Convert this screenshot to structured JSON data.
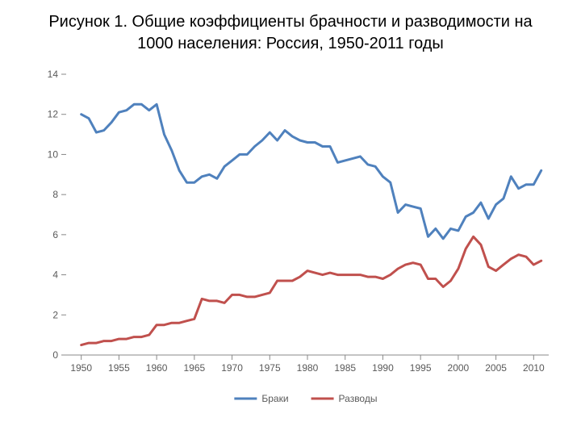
{
  "title_line1": "Рисунок 1. Общие коэффициенты брачности и разводимости на",
  "title_line2": "1000 населения: Россия, 1950-2011 годы",
  "title_fontsize": 20,
  "title_color": "#000000",
  "chart": {
    "type": "line",
    "background_color": "#ffffff",
    "plot_border_color": "#888888",
    "axis_tick_color": "#888888",
    "axis_label_color": "#595959",
    "axis_label_fontsize": 12,
    "grid": false,
    "x_axis": {
      "min": 1948,
      "max": 2012,
      "ticks": [
        1950,
        1955,
        1960,
        1965,
        1970,
        1975,
        1980,
        1985,
        1990,
        1995,
        2000,
        2005,
        2010
      ]
    },
    "y_axis": {
      "min": 0,
      "max": 14,
      "ticks": [
        0,
        2,
        4,
        6,
        8,
        10,
        12,
        14
      ]
    },
    "series": [
      {
        "name": "Браки",
        "color": "#4f81bd",
        "line_width": 3,
        "legend_label": "Браки",
        "x": [
          1950,
          1951,
          1952,
          1953,
          1954,
          1955,
          1956,
          1957,
          1958,
          1959,
          1960,
          1961,
          1962,
          1963,
          1964,
          1965,
          1966,
          1967,
          1968,
          1969,
          1970,
          1971,
          1972,
          1973,
          1974,
          1975,
          1976,
          1977,
          1978,
          1979,
          1980,
          1981,
          1982,
          1983,
          1984,
          1985,
          1986,
          1987,
          1988,
          1989,
          1990,
          1991,
          1992,
          1993,
          1994,
          1995,
          1996,
          1997,
          1998,
          1999,
          2000,
          2001,
          2002,
          2003,
          2004,
          2005,
          2006,
          2007,
          2008,
          2009,
          2010,
          2011
        ],
        "y": [
          12.0,
          11.8,
          11.1,
          11.2,
          11.6,
          12.1,
          12.2,
          12.5,
          12.5,
          12.2,
          12.5,
          11.0,
          10.2,
          9.2,
          8.6,
          8.6,
          8.9,
          9.0,
          8.8,
          9.4,
          9.7,
          10.0,
          10.0,
          10.4,
          10.7,
          11.1,
          10.7,
          11.2,
          10.9,
          10.7,
          10.6,
          10.6,
          10.4,
          10.4,
          9.6,
          9.7,
          9.8,
          9.9,
          9.5,
          9.4,
          8.9,
          8.6,
          7.1,
          7.5,
          7.4,
          7.3,
          5.9,
          6.3,
          5.8,
          6.3,
          6.2,
          6.9,
          7.1,
          7.6,
          6.8,
          7.5,
          7.8,
          8.9,
          8.3,
          8.5,
          8.5,
          9.2
        ]
      },
      {
        "name": "Разводы",
        "color": "#c0504d",
        "line_width": 3,
        "legend_label": "Разводы",
        "x": [
          1950,
          1951,
          1952,
          1953,
          1954,
          1955,
          1956,
          1957,
          1958,
          1959,
          1960,
          1961,
          1962,
          1963,
          1964,
          1965,
          1966,
          1967,
          1968,
          1969,
          1970,
          1971,
          1972,
          1973,
          1974,
          1975,
          1976,
          1977,
          1978,
          1979,
          1980,
          1981,
          1982,
          1983,
          1984,
          1985,
          1986,
          1987,
          1988,
          1989,
          1990,
          1991,
          1992,
          1993,
          1994,
          1995,
          1996,
          1997,
          1998,
          1999,
          2000,
          2001,
          2002,
          2003,
          2004,
          2005,
          2006,
          2007,
          2008,
          2009,
          2010,
          2011
        ],
        "y": [
          0.5,
          0.6,
          0.6,
          0.7,
          0.7,
          0.8,
          0.8,
          0.9,
          0.9,
          1.0,
          1.5,
          1.5,
          1.6,
          1.6,
          1.7,
          1.8,
          2.8,
          2.7,
          2.7,
          2.6,
          3.0,
          3.0,
          2.9,
          2.9,
          3.0,
          3.1,
          3.7,
          3.7,
          3.7,
          3.9,
          4.2,
          4.1,
          4.0,
          4.1,
          4.0,
          4.0,
          4.0,
          4.0,
          3.9,
          3.9,
          3.8,
          4.0,
          4.3,
          4.5,
          4.6,
          4.5,
          3.8,
          3.8,
          3.4,
          3.7,
          4.3,
          5.3,
          5.9,
          5.5,
          4.4,
          4.2,
          4.5,
          4.8,
          5.0,
          4.9,
          4.5,
          4.7
        ]
      }
    ],
    "legend": {
      "position": "bottom",
      "fontsize": 12,
      "text_color": "#595959",
      "line_length": 28
    }
  }
}
